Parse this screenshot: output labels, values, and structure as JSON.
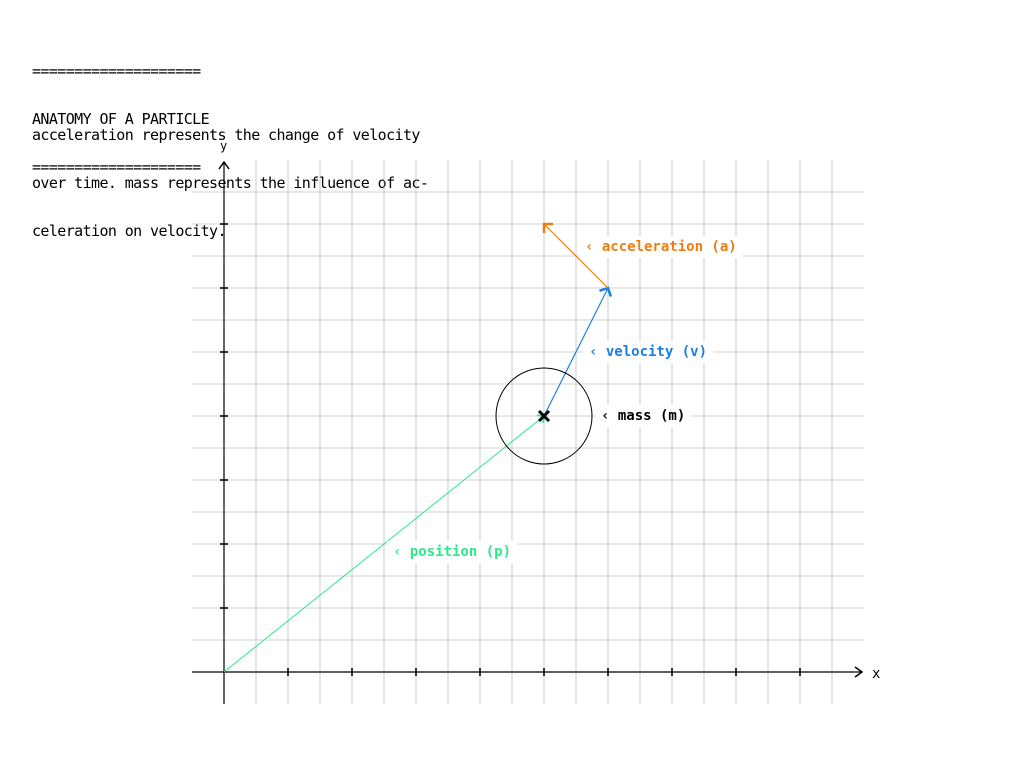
{
  "header": {
    "rule_top": "====================",
    "title": "ANATOMY OF A PARTICLE",
    "rule_bottom": "===================="
  },
  "intro": {
    "line1": "acceleration represents the change of velocity",
    "line2": "over time. mass represents the influence of ac-",
    "line3": "celeration on velocity."
  },
  "axes": {
    "x_label": "x",
    "y_label": "y"
  },
  "vectors": {
    "position": {
      "label": "‹ position (p)",
      "color": "#2ee88a",
      "to": [
        10,
        8
      ]
    },
    "velocity": {
      "label": "‹ velocity (v)",
      "color": "#1a7fe0",
      "to": [
        2,
        4
      ]
    },
    "acceleration": {
      "label": "‹ acceleration (a)",
      "color": "#f07c10",
      "to": [
        -2,
        2
      ]
    },
    "mass": {
      "label": "‹ mass (m)",
      "color": "#000000"
    }
  }
}
